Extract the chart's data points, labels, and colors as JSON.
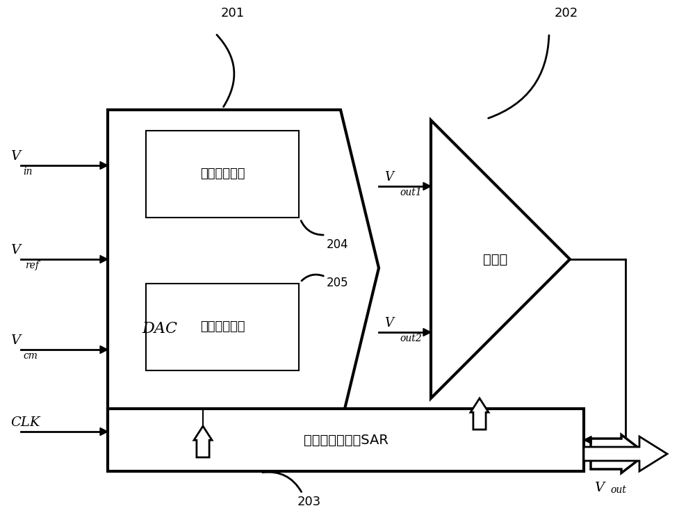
{
  "bg_color": "#ffffff",
  "lc": "#000000",
  "lw": 2.0,
  "cap1_label": "第一电容阵列",
  "cap2_label": "第一电容阵列",
  "dac_label": "DAC",
  "comparator_label": "比较器",
  "sar_label": "逐次透近寄存器SAR",
  "label_201": "201",
  "label_202": "202",
  "label_203": "203",
  "label_204": "204",
  "label_205": "205",
  "clk_label": "CLK",
  "vin_main": "V",
  "vin_sub": "in",
  "vref_main": "V",
  "vref_sub": "ref",
  "vcm_main": "V",
  "vcm_sub": "cm",
  "vout1_main": "V",
  "vout1_sub": "out1",
  "vout2_main": "V",
  "vout2_sub": "out2",
  "vout_main": "V",
  "vout_sub": "out",
  "figw": 10.0,
  "figh": 7.28,
  "dpi": 100
}
